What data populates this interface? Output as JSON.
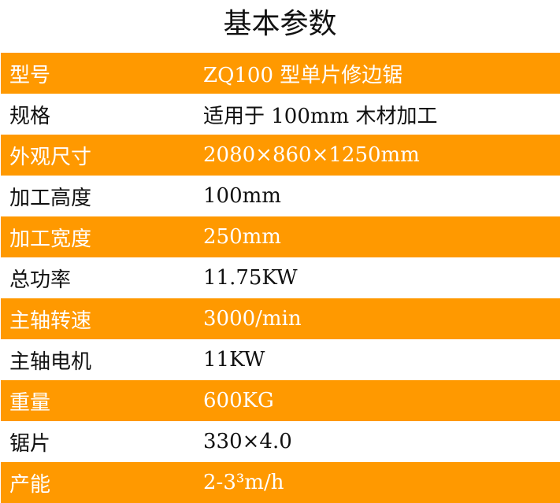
{
  "title": "基本参数",
  "accent_color": "#FF9900",
  "rows": [
    {
      "label": "型号",
      "value": "ZQ100 型单片修边锯",
      "highlight": true
    },
    {
      "label": "规格",
      "value": "适用于 100mm 木材加工",
      "highlight": false
    },
    {
      "label": "外观尺寸",
      "value": "2080×860×1250mm",
      "highlight": true
    },
    {
      "label": "加工高度",
      "value": "100mm",
      "highlight": false
    },
    {
      "label": "加工宽度",
      "value": "250mm",
      "highlight": true
    },
    {
      "label": "总功率",
      "value": "11.75KW",
      "highlight": false
    },
    {
      "label": "主轴转速",
      "value": "3000/min",
      "highlight": true
    },
    {
      "label": "主轴电机",
      "value": "11KW",
      "highlight": false
    },
    {
      "label": "重量",
      "value": "600KG",
      "highlight": true
    },
    {
      "label": "锯片",
      "value": "330×4.0",
      "highlight": false
    },
    {
      "label": "产能",
      "value": "2-3³m/h",
      "highlight": true
    }
  ]
}
